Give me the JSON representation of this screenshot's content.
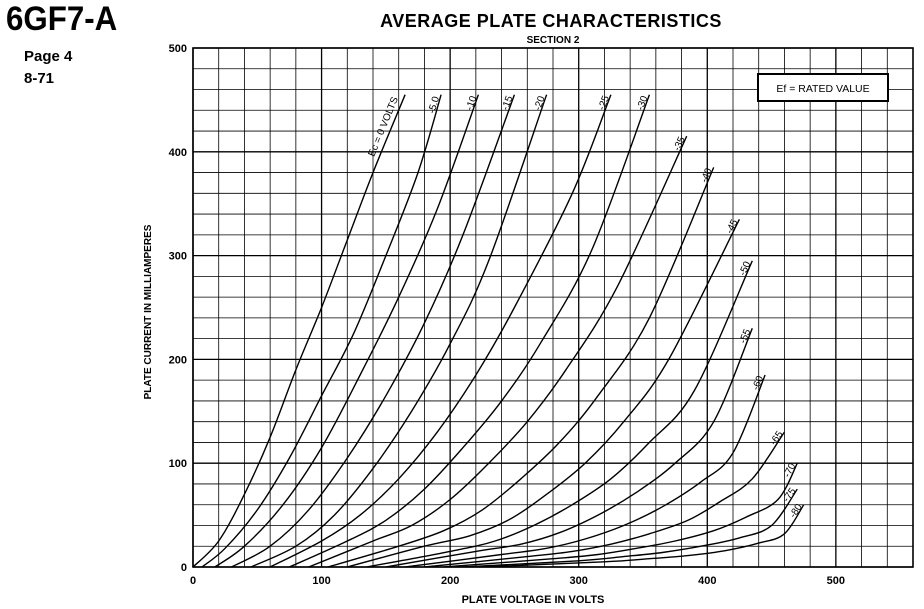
{
  "header": {
    "tube_type": "6GF7-A",
    "page": "Page 4",
    "date": "8-71"
  },
  "chart_data": {
    "type": "line",
    "title": "AVERAGE PLATE CHARACTERISTICS",
    "subtitle": "SECTION 2",
    "xlabel": "PLATE VOLTAGE IN VOLTS",
    "ylabel": "PLATE CURRENT IN MILLIAMPERES",
    "xlim": [
      0,
      560
    ],
    "ylim": [
      0,
      500
    ],
    "x_ticks": [
      "0",
      "100",
      "200",
      "300",
      "400",
      "500"
    ],
    "y_ticks": [
      "0",
      "100",
      "200",
      "300",
      "400",
      "500"
    ],
    "x_tick_values": [
      0,
      100,
      200,
      300,
      400,
      500
    ],
    "y_tick_values": [
      0,
      100,
      200,
      300,
      400,
      500
    ],
    "grid": true,
    "annotation_box": "Ef = RATED VALUE",
    "curve_label_prefix": "Ec = 0 VOLTS",
    "series": [
      {
        "name": "Ec = 0 VOLTS",
        "label": "Ec = 0 VOLTS",
        "x": [
          0,
          20,
          40,
          60,
          80,
          100,
          120,
          140,
          165
        ],
        "y": [
          0,
          25,
          70,
          125,
          190,
          250,
          315,
          380,
          455
        ]
      },
      {
        "name": "-5.0",
        "label": "-5.0",
        "x": [
          7,
          25,
          50,
          75,
          100,
          125,
          150,
          175,
          193
        ],
        "y": [
          0,
          18,
          55,
          105,
          165,
          225,
          300,
          380,
          455
        ]
      },
      {
        "name": "-10",
        "label": "-10",
        "x": [
          17,
          40,
          70,
          100,
          130,
          160,
          190,
          222
        ],
        "y": [
          0,
          20,
          60,
          115,
          185,
          260,
          345,
          455
        ]
      },
      {
        "name": "-15",
        "label": "-15",
        "x": [
          30,
          60,
          90,
          120,
          150,
          180,
          210,
          250
        ],
        "y": [
          0,
          20,
          55,
          105,
          165,
          235,
          320,
          455
        ]
      },
      {
        "name": "-20",
        "label": "-20",
        "x": [
          45,
          80,
          110,
          140,
          170,
          200,
          230,
          275
        ],
        "y": [
          0,
          20,
          50,
          95,
          150,
          215,
          295,
          455
        ]
      },
      {
        "name": "-25",
        "label": "-25",
        "x": [
          60,
          100,
          130,
          160,
          190,
          220,
          250,
          295,
          325
        ],
        "y": [
          0,
          25,
          50,
          85,
          130,
          185,
          250,
          360,
          455
        ]
      },
      {
        "name": "-30",
        "label": "-30",
        "x": [
          75,
          120,
          150,
          180,
          210,
          240,
          270,
          310,
          355
        ],
        "y": [
          0,
          25,
          45,
          75,
          115,
          160,
          215,
          305,
          455
        ]
      },
      {
        "name": "-35",
        "label": "-35",
        "x": [
          90,
          140,
          170,
          200,
          230,
          260,
          290,
          330,
          384
        ],
        "y": [
          0,
          25,
          40,
          65,
          100,
          140,
          190,
          270,
          415
        ]
      },
      {
        "name": "-40",
        "label": "-40",
        "x": [
          105,
          160,
          195,
          225,
          255,
          285,
          315,
          355,
          405
        ],
        "y": [
          0,
          20,
          35,
          55,
          85,
          120,
          165,
          240,
          385
        ]
      },
      {
        "name": "-45",
        "label": "-45",
        "x": [
          120,
          180,
          215,
          245,
          275,
          305,
          335,
          370,
          425
        ],
        "y": [
          0,
          20,
          30,
          45,
          70,
          100,
          140,
          200,
          335
        ]
      },
      {
        "name": "-50",
        "label": "-50",
        "x": [
          135,
          200,
          235,
          265,
          295,
          325,
          355,
          390,
          435
        ],
        "y": [
          0,
          15,
          25,
          40,
          60,
          85,
          120,
          170,
          295
        ]
      },
      {
        "name": "-55",
        "label": "-55",
        "x": [
          150,
          220,
          255,
          285,
          315,
          345,
          375,
          405,
          435
        ],
        "y": [
          0,
          15,
          22,
          33,
          50,
          72,
          100,
          140,
          230
        ]
      },
      {
        "name": "-60",
        "label": "-60",
        "x": [
          165,
          240,
          275,
          305,
          335,
          365,
          395,
          420,
          445
        ],
        "y": [
          0,
          12,
          18,
          27,
          40,
          58,
          82,
          110,
          185
        ]
      },
      {
        "name": "-65",
        "label": "-65",
        "x": [
          180,
          260,
          295,
          325,
          355,
          385,
          410,
          435,
          460
        ],
        "y": [
          0,
          10,
          15,
          22,
          32,
          45,
          63,
          85,
          130
        ]
      },
      {
        "name": "-70",
        "label": "-70",
        "x": [
          195,
          280,
          315,
          345,
          375,
          405,
          430,
          455,
          470
        ],
        "y": [
          0,
          8,
          12,
          18,
          25,
          35,
          48,
          65,
          100
        ]
      },
      {
        "name": "-75",
        "label": "-75",
        "x": [
          210,
          300,
          335,
          365,
          395,
          425,
          450,
          470
        ],
        "y": [
          0,
          6,
          10,
          14,
          20,
          28,
          40,
          75
        ]
      },
      {
        "name": "-80",
        "label": "-80",
        "x": [
          225,
          320,
          355,
          385,
          415,
          440,
          460,
          475
        ],
        "y": [
          0,
          5,
          8,
          11,
          16,
          23,
          32,
          60
        ]
      }
    ]
  }
}
